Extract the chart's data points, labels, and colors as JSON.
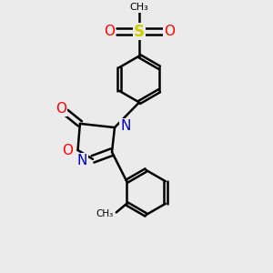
{
  "bg_color": "#ebebeb",
  "atom_colors": {
    "C": "#000000",
    "N": "#0000cc",
    "O": "#ff0000",
    "S": "#cccc00"
  },
  "bond_color": "#000000",
  "bond_width": 1.8,
  "dbo": 0.13
}
